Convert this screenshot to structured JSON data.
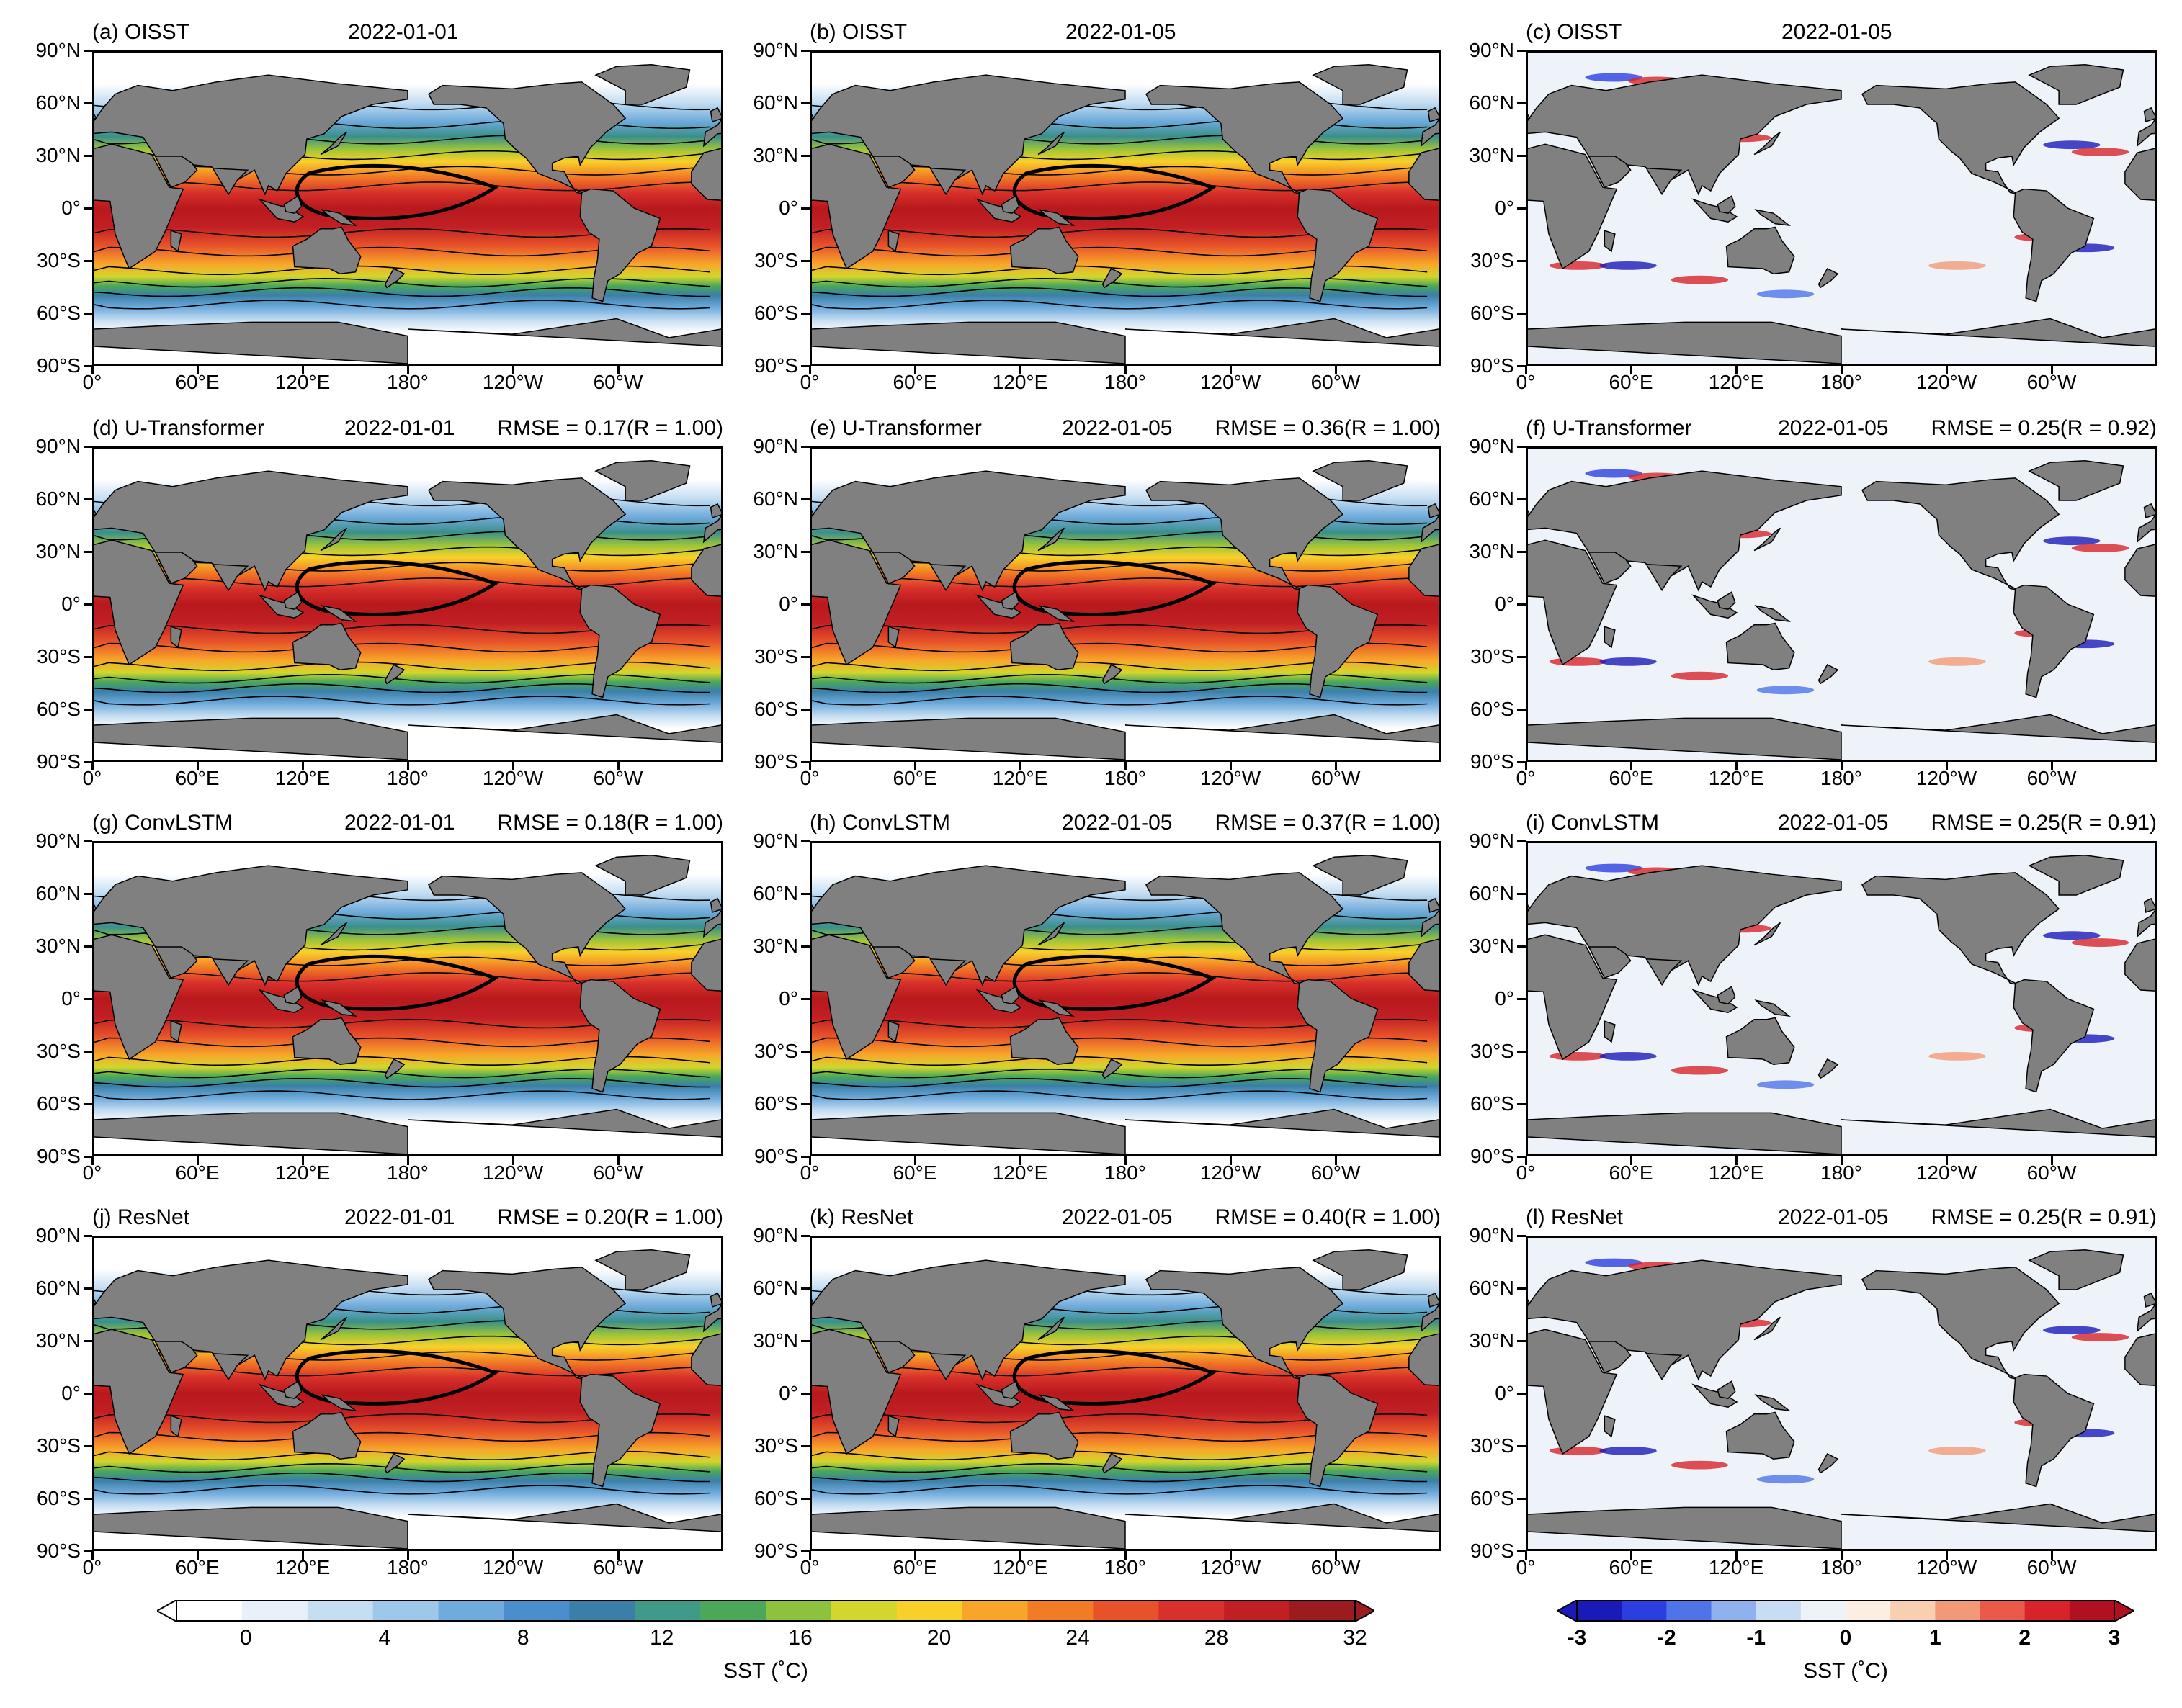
{
  "panels": [
    {
      "id": "a",
      "label": "(a) OISST",
      "date": "2022-01-01",
      "metric": "",
      "kind": "sst"
    },
    {
      "id": "b",
      "label": "(b) OISST",
      "date": "2022-01-05",
      "metric": "",
      "kind": "sst"
    },
    {
      "id": "c",
      "label": "(c) OISST",
      "date": "2022-01-05",
      "metric": "",
      "kind": "diff"
    },
    {
      "id": "d",
      "label": "(d) U-Transformer",
      "date": "2022-01-01",
      "metric": "RMSE = 0.17(R = 1.00)",
      "kind": "sst"
    },
    {
      "id": "e",
      "label": "(e) U-Transformer",
      "date": "2022-01-05",
      "metric": "RMSE = 0.36(R = 1.00)",
      "kind": "sst"
    },
    {
      "id": "f",
      "label": "(f) U-Transformer",
      "date": "2022-01-05",
      "metric": "RMSE = 0.25(R = 0.92)",
      "kind": "diff"
    },
    {
      "id": "g",
      "label": "(g) ConvLSTM",
      "date": "2022-01-01",
      "metric": "RMSE = 0.18(R = 1.00)",
      "kind": "sst"
    },
    {
      "id": "h",
      "label": "(h) ConvLSTM",
      "date": "2022-01-05",
      "metric": "RMSE = 0.37(R = 1.00)",
      "kind": "sst"
    },
    {
      "id": "i",
      "label": "(i) ConvLSTM",
      "date": "2022-01-05",
      "metric": "RMSE = 0.25(R = 0.91)",
      "kind": "diff"
    },
    {
      "id": "j",
      "label": "(j) ResNet",
      "date": "2022-01-01",
      "metric": "RMSE = 0.20(R = 1.00)",
      "kind": "sst"
    },
    {
      "id": "k",
      "label": "(k) ResNet",
      "date": "2022-01-05",
      "metric": "RMSE = 0.40(R = 1.00)",
      "kind": "sst"
    },
    {
      "id": "l",
      "label": "(l) ResNet",
      "date": "2022-01-05",
      "metric": "RMSE = 0.25(R = 0.91)",
      "kind": "diff"
    }
  ],
  "lat_labels": [
    "90°N",
    "60°N",
    "30°N",
    "0°",
    "30°S",
    "60°S",
    "90°S"
  ],
  "lon_labels": [
    "0°",
    "60°E",
    "120°E",
    "180°",
    "120°W",
    "60°W"
  ],
  "colorbar_sst": {
    "ticks": [
      "0",
      "4",
      "8",
      "12",
      "16",
      "20",
      "24",
      "28",
      "32"
    ],
    "label": "SST (˚C)",
    "colors": [
      "#ffffff",
      "#e8f1fa",
      "#c5def2",
      "#9ec8ea",
      "#6fabdc",
      "#4a8fcb",
      "#3a7fa8",
      "#3f9a8a",
      "#4aa858",
      "#8dc23e",
      "#d3d62c",
      "#f8d02a",
      "#f8a62a",
      "#f27b26",
      "#e7522a",
      "#d8302b",
      "#c11f23",
      "#9c1b1f"
    ]
  },
  "colorbar_diff": {
    "ticks": [
      "-3",
      "-2",
      "-1",
      "0",
      "1",
      "2",
      "3"
    ],
    "label": "SST (˚C)",
    "colors": [
      "#1a1ab8",
      "#2b3ee0",
      "#4f74e8",
      "#8fb2ee",
      "#c8dcf4",
      "#eef3fa",
      "#fbefe4",
      "#f8cfb0",
      "#f29a78",
      "#ea5a4a",
      "#d8232a",
      "#b01020"
    ]
  }
}
